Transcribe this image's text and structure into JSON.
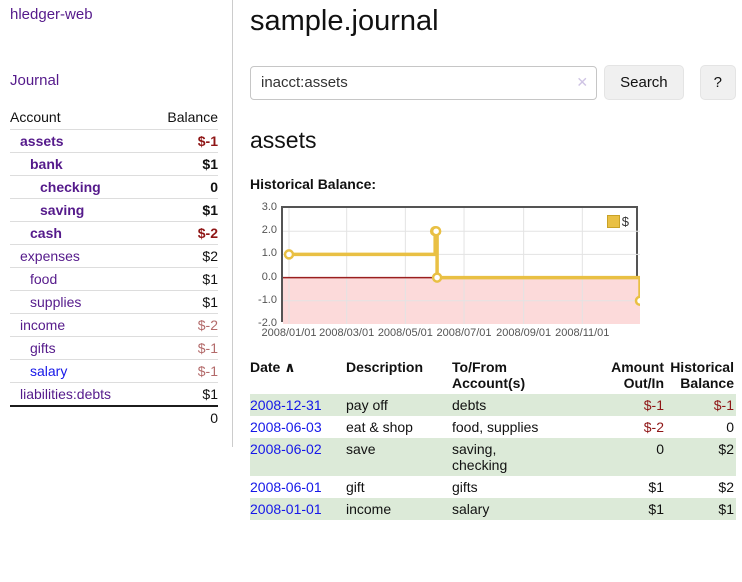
{
  "sidebar": {
    "brand": "hledger-web",
    "journal_link": "Journal",
    "accounts_table": {
      "headers": {
        "account": "Account",
        "balance": "Balance"
      },
      "rows": [
        {
          "name": "assets",
          "balance": "$-1"
        },
        {
          "name": "bank",
          "balance": "$1"
        },
        {
          "name": "checking",
          "balance": "0"
        },
        {
          "name": "saving",
          "balance": "$1"
        },
        {
          "name": "cash",
          "balance": "$-2"
        },
        {
          "name": "expenses",
          "balance": "$2"
        },
        {
          "name": "food",
          "balance": "$1"
        },
        {
          "name": "supplies",
          "balance": "$1"
        },
        {
          "name": "income",
          "balance": "$-2"
        },
        {
          "name": "gifts",
          "balance": "$-1"
        },
        {
          "name": "salary",
          "balance": "$-1"
        },
        {
          "name": "liabilities:debts",
          "balance": "$1"
        }
      ],
      "total": "0"
    }
  },
  "header": {
    "title": "sample.journal"
  },
  "search": {
    "value": "inacct:assets",
    "clear_icon": "✕",
    "button_label": "Search",
    "help_label": "?"
  },
  "account_page": {
    "heading": "assets",
    "chart_label": "Historical Balance:"
  },
  "chart_data": {
    "type": "line",
    "style": "step",
    "title": "Historical Balance",
    "ylim": [
      -2,
      3
    ],
    "y_ticks": [
      "3.0",
      "2.0",
      "1.0",
      "0.0",
      "-1.0",
      "-2.0"
    ],
    "x_ticks": [
      "2008/01/01",
      "2008/03/01",
      "2008/05/01",
      "2008/07/01",
      "2008/09/01",
      "2008/11/01"
    ],
    "series": [
      {
        "name": "$",
        "color": "#e9c044",
        "points": [
          [
            "2008-01-01",
            1
          ],
          [
            "2008-06-01",
            2
          ],
          [
            "2008-06-02",
            2
          ],
          [
            "2008-06-03",
            0
          ],
          [
            "2008-12-31",
            -1
          ]
        ]
      }
    ],
    "grid": true,
    "legend_position": "top-right",
    "zero_line_color": "#9a1f1f",
    "negative_region_color": "#fcdada"
  },
  "register": {
    "sort_indicator": "∧",
    "headers": {
      "date": "Date",
      "description": "Description",
      "tofrom": "To/From\nAccount(s)",
      "amount": "Amount\nOut/In",
      "historical": "Historical\nBalance"
    },
    "rows": [
      {
        "date": "2008-12-31",
        "description": "pay off",
        "tofrom": "debts",
        "amount": "$-1",
        "historical": "$-1"
      },
      {
        "date": "2008-06-03",
        "description": "eat & shop",
        "tofrom": "food, supplies",
        "amount": "$-2",
        "historical": "0"
      },
      {
        "date": "2008-06-02",
        "description": "save",
        "tofrom": "saving,\nchecking",
        "amount": "0",
        "historical": "$2"
      },
      {
        "date": "2008-06-01",
        "description": "gift",
        "tofrom": "gifts",
        "amount": "$1",
        "historical": "$2"
      },
      {
        "date": "2008-01-01",
        "description": "income",
        "tofrom": "salary",
        "amount": "$1",
        "historical": "$1"
      }
    ]
  }
}
